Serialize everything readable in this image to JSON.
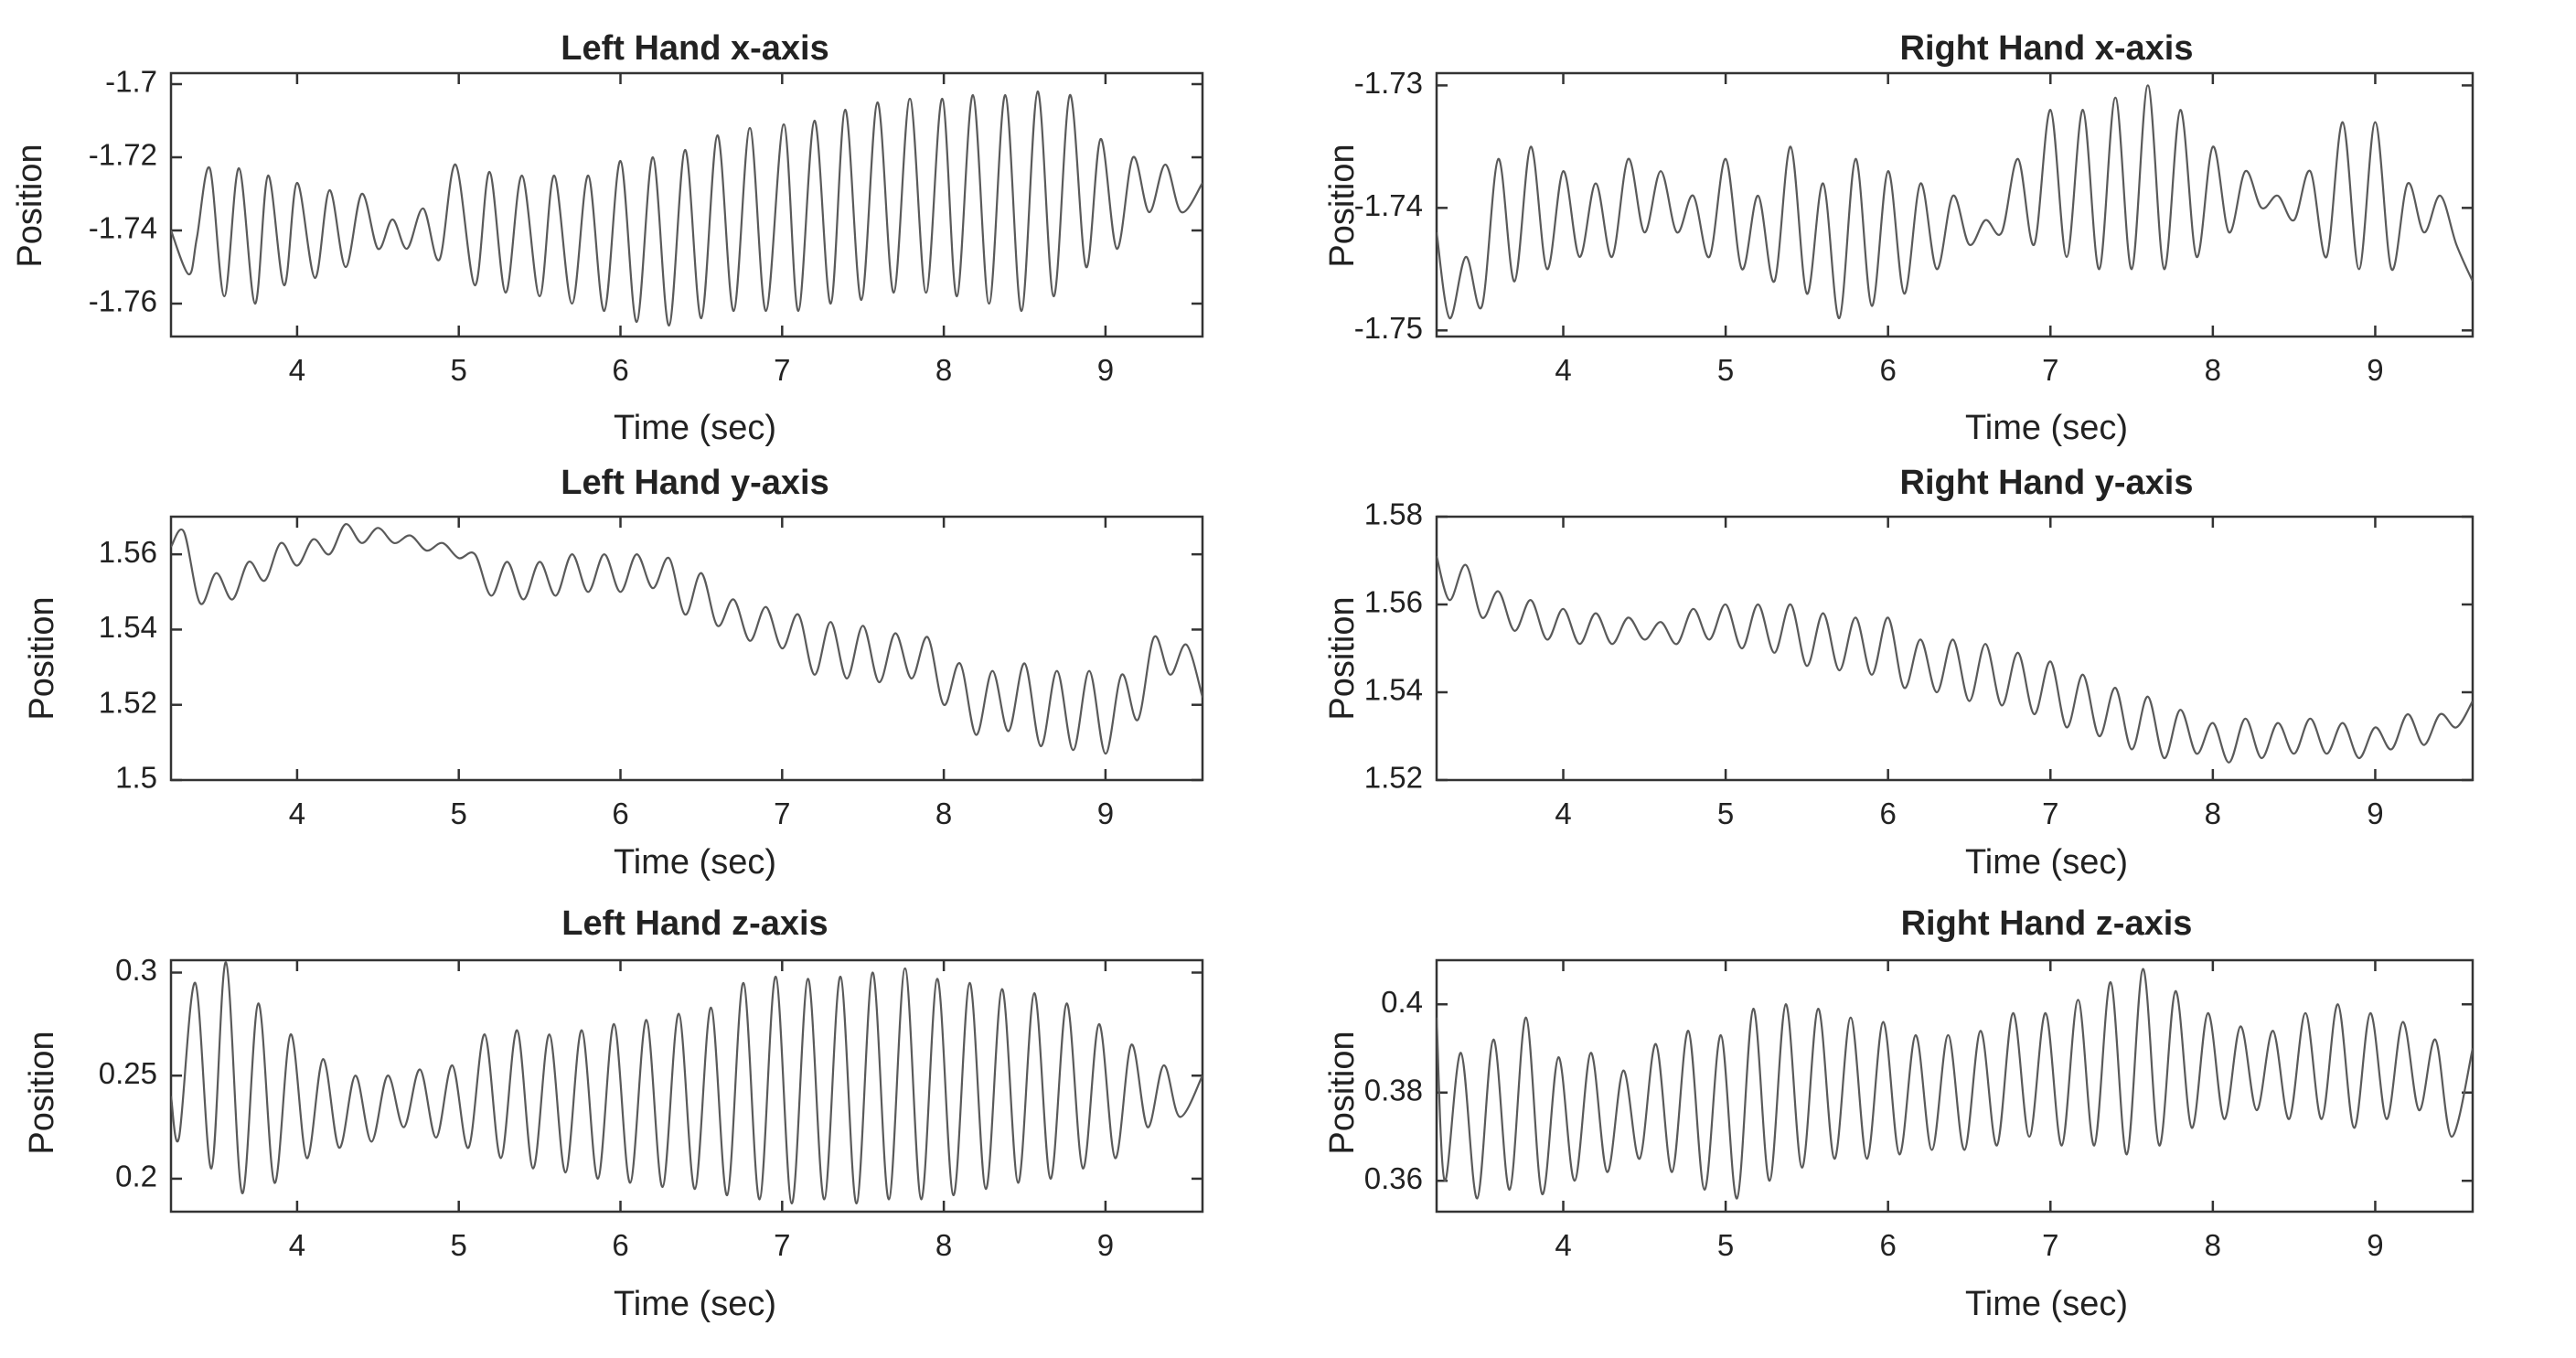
{
  "figure": {
    "panels": [
      {
        "title": "Left Hand x-axis",
        "ylabel": "Position",
        "xlabel": "Time (sec)",
        "yticks": [
          "-1.7",
          "-1.72",
          "-1.74",
          "-1.76"
        ]
      },
      {
        "title": "Right Hand x-axis",
        "ylabel": "Position",
        "xlabel": "Time (sec)",
        "yticks": [
          "-1.73",
          "-1.74",
          "-1.75"
        ]
      },
      {
        "title": "Left Hand y-axis",
        "ylabel": "Position",
        "xlabel": "Time (sec)",
        "yticks": [
          "1.56",
          "1.54",
          "1.52",
          "1.5"
        ]
      },
      {
        "title": "Right Hand y-axis",
        "ylabel": "Position",
        "xlabel": "Time (sec)",
        "yticks": [
          "1.58",
          "1.56",
          "1.54",
          "1.52"
        ]
      },
      {
        "title": "Left Hand z-axis",
        "ylabel": "Position",
        "xlabel": "Time (sec)",
        "yticks": [
          "0.3",
          "0.25",
          "0.2"
        ]
      },
      {
        "title": "Right Hand z-axis",
        "ylabel": "Position",
        "xlabel": "Time (sec)",
        "yticks": [
          "0.4",
          "0.38",
          "0.36"
        ]
      }
    ],
    "xticks": [
      "4",
      "5",
      "6",
      "7",
      "8",
      "9"
    ],
    "line_color": "#5a5a5a"
  },
  "chart_data": [
    {
      "type": "line",
      "title": "Left Hand x-axis",
      "xlabel": "Time (sec)",
      "ylabel": "Position",
      "xlim": [
        3.22,
        9.6
      ],
      "ylim": [
        -1.769,
        -1.697
      ],
      "xticks": [
        4,
        5,
        6,
        7,
        8,
        9
      ],
      "yticks": [
        -1.7,
        -1.72,
        -1.74,
        -1.76
      ],
      "grid": false,
      "series": [
        {
          "x": [
            3.22,
            3.33,
            3.38,
            3.46,
            3.55,
            3.64,
            3.74,
            3.82,
            3.92,
            4.0,
            4.11,
            4.2,
            4.3,
            4.4,
            4.5,
            4.59,
            4.68,
            4.78,
            4.88,
            4.98,
            5.1,
            5.19,
            5.29,
            5.39,
            5.5,
            5.59,
            5.7,
            5.8,
            5.9,
            6.0,
            6.1,
            6.2,
            6.3,
            6.4,
            6.5,
            6.6,
            6.7,
            6.8,
            6.9,
            7.01,
            7.1,
            7.2,
            7.3,
            7.39,
            7.49,
            7.59,
            7.69,
            7.79,
            7.89,
            7.99,
            8.08,
            8.18,
            8.28,
            8.38,
            8.48,
            8.58,
            8.68,
            8.78,
            8.88,
            8.97,
            9.07,
            9.17,
            9.27,
            9.37,
            9.47,
            9.6
          ],
          "y": [
            -1.74,
            -1.752,
            -1.742,
            -1.723,
            -1.758,
            -1.723,
            -1.76,
            -1.725,
            -1.755,
            -1.727,
            -1.753,
            -1.729,
            -1.75,
            -1.73,
            -1.745,
            -1.737,
            -1.745,
            -1.734,
            -1.748,
            -1.722,
            -1.755,
            -1.724,
            -1.757,
            -1.725,
            -1.758,
            -1.725,
            -1.76,
            -1.725,
            -1.762,
            -1.721,
            -1.765,
            -1.72,
            -1.766,
            -1.718,
            -1.764,
            -1.714,
            -1.762,
            -1.712,
            -1.762,
            -1.711,
            -1.762,
            -1.71,
            -1.76,
            -1.707,
            -1.759,
            -1.705,
            -1.757,
            -1.704,
            -1.757,
            -1.704,
            -1.758,
            -1.703,
            -1.76,
            -1.703,
            -1.762,
            -1.702,
            -1.758,
            -1.703,
            -1.75,
            -1.715,
            -1.745,
            -1.72,
            -1.735,
            -1.722,
            -1.735,
            -1.727
          ]
        }
      ]
    },
    {
      "type": "line",
      "title": "Right Hand x-axis",
      "xlabel": "Time (sec)",
      "ylabel": "Position",
      "xlim": [
        3.22,
        9.6
      ],
      "ylim": [
        -1.7505,
        -1.729
      ],
      "xticks": [
        4,
        5,
        6,
        7,
        8,
        9
      ],
      "yticks": [
        -1.73,
        -1.74,
        -1.75
      ],
      "grid": false,
      "series": [
        {
          "x": [
            3.22,
            3.3,
            3.4,
            3.5,
            3.6,
            3.7,
            3.8,
            3.9,
            4.0,
            4.1,
            4.2,
            4.3,
            4.4,
            4.5,
            4.6,
            4.7,
            4.8,
            4.9,
            5.0,
            5.1,
            5.2,
            5.3,
            5.4,
            5.5,
            5.6,
            5.7,
            5.8,
            5.9,
            6.0,
            6.1,
            6.2,
            6.3,
            6.4,
            6.5,
            6.6,
            6.7,
            6.8,
            6.9,
            7.0,
            7.1,
            7.2,
            7.3,
            7.4,
            7.5,
            7.6,
            7.7,
            7.8,
            7.9,
            8.0,
            8.1,
            8.2,
            8.3,
            8.4,
            8.5,
            8.6,
            8.7,
            8.8,
            8.9,
            9.0,
            9.1,
            9.2,
            9.3,
            9.4,
            9.5,
            9.6
          ],
          "y": [
            -1.742,
            -1.749,
            -1.744,
            -1.748,
            -1.736,
            -1.746,
            -1.735,
            -1.745,
            -1.737,
            -1.744,
            -1.738,
            -1.744,
            -1.736,
            -1.742,
            -1.737,
            -1.742,
            -1.739,
            -1.744,
            -1.736,
            -1.745,
            -1.739,
            -1.746,
            -1.735,
            -1.747,
            -1.738,
            -1.749,
            -1.736,
            -1.748,
            -1.737,
            -1.747,
            -1.738,
            -1.745,
            -1.739,
            -1.743,
            -1.741,
            -1.742,
            -1.736,
            -1.743,
            -1.732,
            -1.744,
            -1.732,
            -1.745,
            -1.731,
            -1.745,
            -1.73,
            -1.745,
            -1.732,
            -1.744,
            -1.735,
            -1.742,
            -1.737,
            -1.74,
            -1.739,
            -1.741,
            -1.737,
            -1.744,
            -1.733,
            -1.745,
            -1.733,
            -1.745,
            -1.738,
            -1.742,
            -1.739,
            -1.743,
            -1.746
          ]
        }
      ]
    },
    {
      "type": "line",
      "title": "Left Hand y-axis",
      "xlabel": "Time (sec)",
      "ylabel": "Position",
      "xlim": [
        3.22,
        9.6
      ],
      "ylim": [
        1.5,
        1.57
      ],
      "xticks": [
        4,
        5,
        6,
        7,
        8,
        9
      ],
      "yticks": [
        1.56,
        1.54,
        1.52,
        1.5
      ],
      "grid": false,
      "series": [
        {
          "x": [
            3.22,
            3.3,
            3.4,
            3.5,
            3.6,
            3.7,
            3.8,
            3.9,
            4.0,
            4.1,
            4.2,
            4.3,
            4.4,
            4.5,
            4.6,
            4.7,
            4.8,
            4.9,
            5.0,
            5.1,
            5.2,
            5.3,
            5.4,
            5.5,
            5.6,
            5.7,
            5.8,
            5.9,
            6.0,
            6.1,
            6.2,
            6.3,
            6.4,
            6.5,
            6.6,
            6.7,
            6.8,
            6.9,
            7.0,
            7.1,
            7.2,
            7.3,
            7.4,
            7.5,
            7.6,
            7.7,
            7.8,
            7.9,
            8.0,
            8.1,
            8.2,
            8.3,
            8.4,
            8.5,
            8.6,
            8.7,
            8.8,
            8.9,
            9.0,
            9.1,
            9.2,
            9.3,
            9.4,
            9.5,
            9.6
          ],
          "y": [
            1.562,
            1.566,
            1.547,
            1.555,
            1.548,
            1.558,
            1.553,
            1.563,
            1.557,
            1.564,
            1.56,
            1.568,
            1.563,
            1.567,
            1.563,
            1.565,
            1.561,
            1.563,
            1.559,
            1.56,
            1.549,
            1.558,
            1.548,
            1.558,
            1.549,
            1.56,
            1.55,
            1.56,
            1.55,
            1.56,
            1.551,
            1.559,
            1.544,
            1.555,
            1.541,
            1.548,
            1.537,
            1.546,
            1.535,
            1.544,
            1.528,
            1.542,
            1.527,
            1.541,
            1.526,
            1.539,
            1.527,
            1.538,
            1.52,
            1.531,
            1.512,
            1.529,
            1.513,
            1.531,
            1.509,
            1.529,
            1.508,
            1.529,
            1.507,
            1.528,
            1.516,
            1.538,
            1.528,
            1.536,
            1.522
          ]
        }
      ]
    },
    {
      "type": "line",
      "title": "Right Hand y-axis",
      "xlabel": "Time (sec)",
      "ylabel": "Position",
      "xlim": [
        3.22,
        9.6
      ],
      "ylim": [
        1.52,
        1.58
      ],
      "xticks": [
        4,
        5,
        6,
        7,
        8,
        9
      ],
      "yticks": [
        1.58,
        1.56,
        1.54,
        1.52
      ],
      "grid": false,
      "series": [
        {
          "x": [
            3.22,
            3.3,
            3.4,
            3.5,
            3.6,
            3.7,
            3.8,
            3.9,
            4.0,
            4.1,
            4.2,
            4.3,
            4.4,
            4.5,
            4.6,
            4.7,
            4.8,
            4.9,
            5.0,
            5.1,
            5.2,
            5.3,
            5.4,
            5.5,
            5.6,
            5.7,
            5.8,
            5.9,
            6.0,
            6.1,
            6.2,
            6.3,
            6.4,
            6.5,
            6.6,
            6.7,
            6.8,
            6.9,
            7.0,
            7.1,
            7.2,
            7.3,
            7.4,
            7.5,
            7.6,
            7.7,
            7.8,
            7.9,
            8.0,
            8.1,
            8.2,
            8.3,
            8.4,
            8.5,
            8.6,
            8.7,
            8.8,
            8.9,
            9.0,
            9.1,
            9.2,
            9.3,
            9.4,
            9.5,
            9.6
          ],
          "y": [
            1.571,
            1.561,
            1.569,
            1.557,
            1.563,
            1.554,
            1.561,
            1.552,
            1.559,
            1.551,
            1.558,
            1.551,
            1.557,
            1.552,
            1.556,
            1.551,
            1.559,
            1.552,
            1.56,
            1.55,
            1.56,
            1.549,
            1.56,
            1.546,
            1.558,
            1.545,
            1.557,
            1.544,
            1.557,
            1.541,
            1.552,
            1.54,
            1.552,
            1.538,
            1.551,
            1.537,
            1.549,
            1.535,
            1.547,
            1.532,
            1.544,
            1.53,
            1.541,
            1.527,
            1.539,
            1.525,
            1.536,
            1.526,
            1.533,
            1.524,
            1.534,
            1.525,
            1.533,
            1.526,
            1.534,
            1.526,
            1.533,
            1.525,
            1.532,
            1.527,
            1.535,
            1.528,
            1.535,
            1.532,
            1.538
          ]
        }
      ]
    },
    {
      "type": "line",
      "title": "Left Hand z-axis",
      "xlabel": "Time (sec)",
      "ylabel": "Position",
      "xlim": [
        3.22,
        9.6
      ],
      "ylim": [
        0.184,
        0.306
      ],
      "xticks": [
        4,
        5,
        6,
        7,
        8,
        9
      ],
      "yticks": [
        0.3,
        0.25,
        0.2
      ],
      "grid": false,
      "series": [
        {
          "x": [
            3.22,
            3.27,
            3.37,
            3.47,
            3.56,
            3.66,
            3.76,
            3.86,
            3.96,
            4.06,
            4.16,
            4.26,
            4.36,
            4.46,
            4.56,
            4.66,
            4.76,
            4.86,
            4.96,
            5.06,
            5.16,
            5.26,
            5.36,
            5.46,
            5.56,
            5.66,
            5.76,
            5.86,
            5.96,
            6.06,
            6.16,
            6.26,
            6.36,
            6.46,
            6.56,
            6.66,
            6.76,
            6.86,
            6.96,
            7.06,
            7.16,
            7.26,
            7.36,
            7.46,
            7.56,
            7.66,
            7.76,
            7.86,
            7.96,
            8.06,
            8.16,
            8.26,
            8.36,
            8.46,
            8.56,
            8.66,
            8.76,
            8.86,
            8.96,
            9.06,
            9.16,
            9.26,
            9.36,
            9.46,
            9.6
          ],
          "y": [
            0.24,
            0.22,
            0.295,
            0.205,
            0.305,
            0.193,
            0.285,
            0.198,
            0.27,
            0.21,
            0.258,
            0.215,
            0.25,
            0.218,
            0.25,
            0.225,
            0.253,
            0.22,
            0.255,
            0.215,
            0.27,
            0.21,
            0.272,
            0.205,
            0.27,
            0.203,
            0.272,
            0.2,
            0.275,
            0.198,
            0.277,
            0.196,
            0.28,
            0.195,
            0.283,
            0.192,
            0.295,
            0.19,
            0.298,
            0.188,
            0.297,
            0.19,
            0.298,
            0.188,
            0.3,
            0.19,
            0.302,
            0.19,
            0.297,
            0.192,
            0.295,
            0.195,
            0.292,
            0.198,
            0.29,
            0.2,
            0.285,
            0.205,
            0.275,
            0.21,
            0.265,
            0.225,
            0.255,
            0.23,
            0.25
          ]
        }
      ]
    },
    {
      "type": "line",
      "title": "Right Hand z-axis",
      "xlabel": "Time (sec)",
      "ylabel": "Position",
      "xlim": [
        3.22,
        9.6
      ],
      "ylim": [
        0.353,
        0.41
      ],
      "xticks": [
        4,
        5,
        6,
        7,
        8,
        9
      ],
      "yticks": [
        0.4,
        0.38,
        0.36
      ],
      "grid": false,
      "series": [
        {
          "x": [
            3.22,
            3.27,
            3.37,
            3.47,
            3.57,
            3.67,
            3.77,
            3.87,
            3.97,
            4.07,
            4.17,
            4.27,
            4.37,
            4.47,
            4.57,
            4.67,
            4.77,
            4.87,
            4.97,
            5.07,
            5.17,
            5.27,
            5.37,
            5.47,
            5.57,
            5.67,
            5.77,
            5.87,
            5.97,
            6.07,
            6.17,
            6.27,
            6.37,
            6.47,
            6.57,
            6.67,
            6.77,
            6.87,
            6.97,
            7.07,
            7.17,
            7.27,
            7.37,
            7.47,
            7.57,
            7.67,
            7.77,
            7.87,
            7.97,
            8.07,
            8.17,
            8.27,
            8.37,
            8.47,
            8.57,
            8.67,
            8.77,
            8.87,
            8.97,
            9.07,
            9.17,
            9.27,
            9.37,
            9.47,
            9.6
          ],
          "y": [
            0.397,
            0.36,
            0.389,
            0.356,
            0.392,
            0.358,
            0.397,
            0.357,
            0.388,
            0.36,
            0.389,
            0.362,
            0.385,
            0.365,
            0.391,
            0.362,
            0.394,
            0.358,
            0.393,
            0.356,
            0.399,
            0.36,
            0.4,
            0.363,
            0.399,
            0.365,
            0.397,
            0.365,
            0.396,
            0.366,
            0.393,
            0.367,
            0.393,
            0.367,
            0.394,
            0.368,
            0.398,
            0.37,
            0.398,
            0.368,
            0.401,
            0.368,
            0.405,
            0.366,
            0.408,
            0.368,
            0.403,
            0.372,
            0.398,
            0.374,
            0.395,
            0.376,
            0.394,
            0.374,
            0.398,
            0.374,
            0.4,
            0.372,
            0.398,
            0.374,
            0.396,
            0.376,
            0.392,
            0.37,
            0.39
          ]
        }
      ]
    }
  ]
}
